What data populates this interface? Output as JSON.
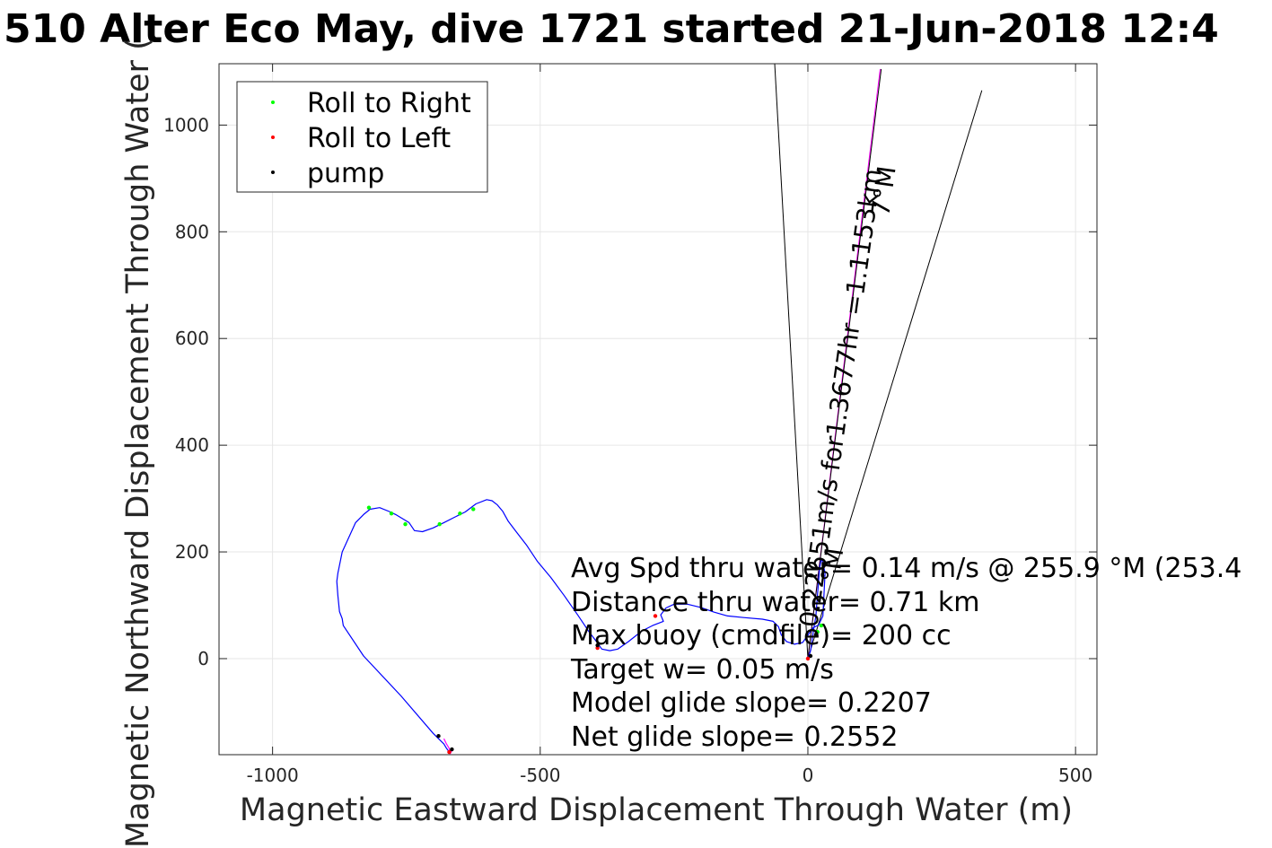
{
  "chart_data": {
    "type": "line",
    "title": "510 Alter Eco May, dive 1721 started 21-Jun-2018 12:4",
    "xlabel": "Magnetic Eastward Displacement Through Water (m)",
    "ylabel": "Magnetic Northward Displacement Through Water (",
    "xlim": [
      -1100,
      540
    ],
    "ylim": [
      -180,
      1115
    ],
    "xticks": [
      -1000,
      -500,
      0,
      500
    ],
    "yticks": [
      0,
      200,
      400,
      600,
      800,
      1000
    ],
    "xtick_labels": [
      "-1000",
      "-500",
      "0",
      "500"
    ],
    "ytick_labels": [
      "0",
      "200",
      "400",
      "600",
      "800",
      "1000"
    ],
    "grid": true,
    "legend_position": "top-left",
    "legend": [
      {
        "label": "Roll to Right",
        "color": "#00ff00"
      },
      {
        "label": "Roll to Left",
        "color": "#ff0000"
      },
      {
        "label": "pump",
        "color": "#000000"
      }
    ],
    "series": [
      {
        "name": "track",
        "color": "#0000ff",
        "x": [
          -670,
          -675,
          -680,
          -690,
          -700,
          -760,
          -830,
          -868,
          -870,
          -875,
          -878,
          -880,
          -878,
          -870,
          -845,
          -830,
          -818,
          -800,
          -780,
          -770,
          -745,
          -735,
          -720,
          -700,
          -680,
          -660,
          -640,
          -620,
          -600,
          -590,
          -580,
          -570,
          -560,
          -545,
          -525,
          -505,
          -480,
          -455,
          -430,
          -410,
          -395,
          -385,
          -370,
          -355,
          -335,
          -310,
          -290,
          -270,
          -275,
          -265,
          -250,
          -225,
          -200,
          -175,
          -150,
          -120,
          -85,
          -65,
          -55,
          -50,
          -40,
          -25,
          -10,
          0,
          10,
          20,
          28,
          30,
          32,
          28,
          25,
          22,
          18,
          15,
          10,
          5,
          0
        ],
        "y": [
          -175,
          -168,
          -160,
          -150,
          -140,
          -70,
          5,
          62,
          75,
          88,
          118,
          145,
          160,
          200,
          255,
          270,
          280,
          283,
          275,
          270,
          255,
          240,
          238,
          245,
          255,
          265,
          275,
          290,
          298,
          296,
          288,
          276,
          258,
          238,
          212,
          182,
          152,
          118,
          82,
          52,
          32,
          18,
          15,
          18,
          32,
          52,
          62,
          70,
          82,
          95,
          102,
          102,
          96,
          87,
          80,
          77,
          74,
          70,
          60,
          45,
          32,
          27,
          30,
          44,
          58,
          63,
          80,
          120,
          160,
          180,
          187,
          170,
          120,
          80,
          50,
          15,
          0
        ]
      },
      {
        "name": "leg-start",
        "color": "#ff00ff",
        "x": [
          -680,
          -675,
          -670,
          -668,
          -665,
          -667
        ],
        "y": [
          -150,
          -160,
          -168,
          -178,
          -172,
          -175
        ]
      }
    ],
    "lines": [
      {
        "color": "#000000",
        "x": [
          0,
          -62
        ],
        "y": [
          0,
          1115
        ]
      },
      {
        "color": "#000000",
        "x": [
          0,
          325
        ],
        "y": [
          0,
          1065
        ]
      },
      {
        "color": "#ff00ff",
        "x": [
          0,
          135
        ],
        "y": [
          0,
          1105
        ]
      },
      {
        "color": "#000000",
        "x": [
          0,
          137
        ],
        "y": [
          0,
          1105
        ]
      }
    ],
    "markers": {
      "roll_right": {
        "color": "#00ff00",
        "x": [
          -820,
          -778,
          -752,
          -688,
          -650,
          -625,
          18,
          25
        ],
        "y": [
          283,
          272,
          252,
          252,
          272,
          280,
          50,
          62
        ]
      },
      "roll_left": {
        "color": "#ff0000",
        "x": [
          -670,
          0,
          -285,
          -393
        ],
        "y": [
          -175,
          0,
          80,
          20
        ]
      },
      "pump": {
        "color": "#000000",
        "x": [
          -690,
          -665,
          -393,
          5,
          15
        ],
        "y": [
          -145,
          -170,
          25,
          5,
          45
        ]
      }
    },
    "annotations": {
      "bearing_text": "0.22651m/s for1.3677hr =1.1153km",
      "bearing_deg": "7°M",
      "small_label": "°M",
      "stats": [
        "Avg Spd thru water=  0.14 m/s @ 255.9 °M (253.4",
        "Distance thru water=  0.71 km",
        "Max buoy (cmdfile)= 200 cc",
        "Target w= 0.05 m/s",
        "Model glide slope= 0.2207",
        "Net glide slope= 0.2552"
      ]
    }
  }
}
